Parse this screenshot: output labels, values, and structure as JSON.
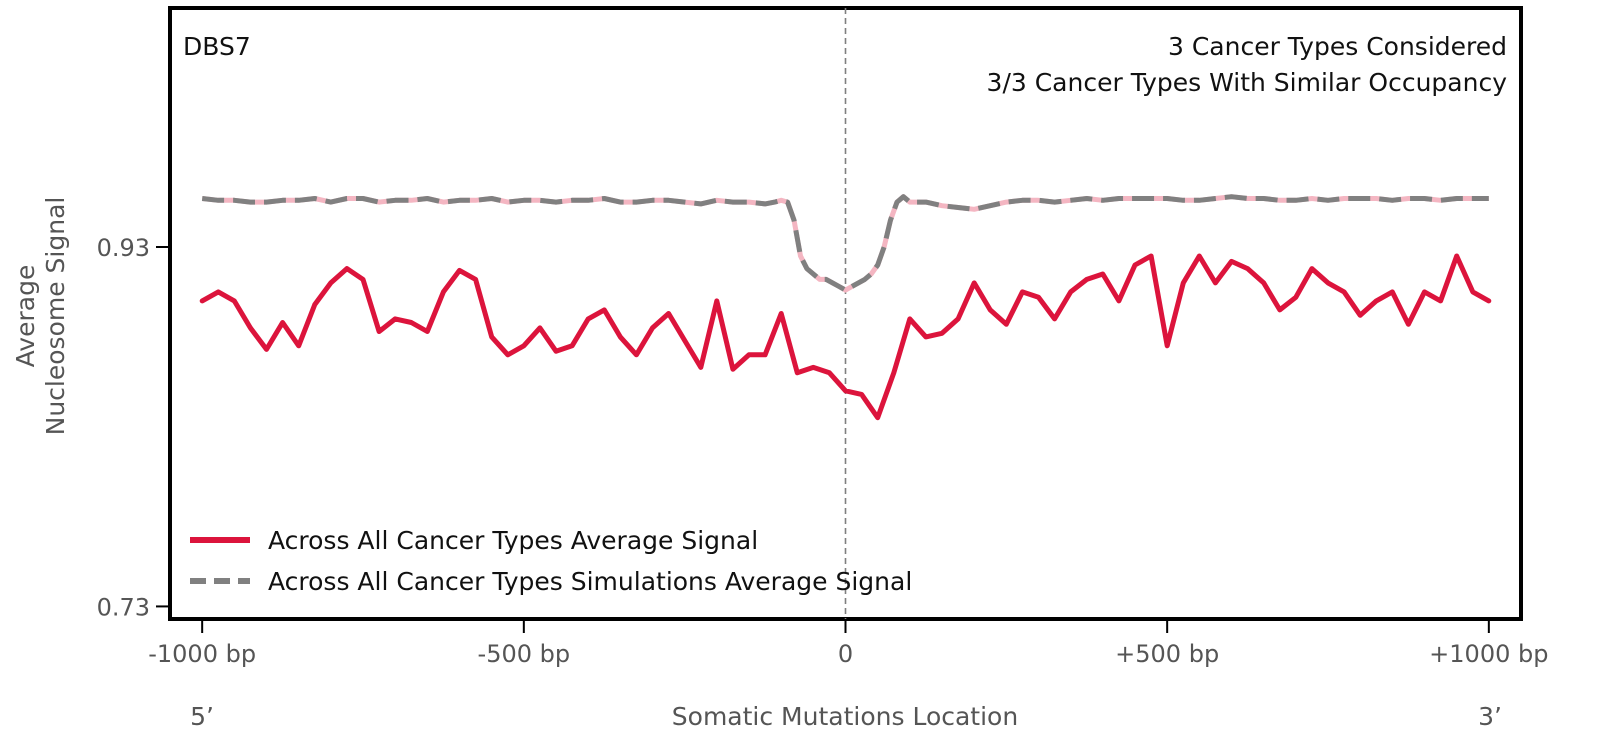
{
  "chart_data": {
    "type": "line",
    "signature": "DBS7",
    "annotation_line1": "3 Cancer Types Considered",
    "annotation_line2": "3/3 Cancer Types With Similar Occupancy",
    "xlabel": "Somatic Mutations Location",
    "ylabel_line1": "Average",
    "ylabel_line2": "Nucleosome Signal",
    "x_end_labels": {
      "left": "5’",
      "right": "3’"
    },
    "xlim": [
      -1050,
      1050
    ],
    "ylim": [
      0.723,
      1.063
    ],
    "x_ticks": [
      {
        "value": -1000,
        "label": "-1000 bp"
      },
      {
        "value": -500,
        "label": "-500 bp"
      },
      {
        "value": 0,
        "label": "0"
      },
      {
        "value": 500,
        "label": "+500 bp"
      },
      {
        "value": 1000,
        "label": "+1000 bp"
      }
    ],
    "y_ticks": [
      {
        "value": 0.73,
        "label": "0.73"
      },
      {
        "value": 0.93,
        "label": "0.93"
      }
    ],
    "vline_x": 0,
    "legend_position": "lower-left",
    "colors": {
      "real": "#dc143c",
      "simulation": "#808080",
      "simulation_highlight": "#f4b6c2",
      "vline": "#7f7f7f"
    },
    "series": [
      {
        "name": "Across All Cancer Types Average Signal",
        "key": "real",
        "x": [
          -1000,
          -975,
          -950,
          -925,
          -900,
          -875,
          -850,
          -825,
          -800,
          -775,
          -750,
          -725,
          -700,
          -675,
          -650,
          -625,
          -600,
          -575,
          -550,
          -525,
          -500,
          -475,
          -450,
          -425,
          -400,
          -375,
          -350,
          -325,
          -300,
          -275,
          -250,
          -225,
          -200,
          -175,
          -150,
          -125,
          -100,
          -75,
          -50,
          -25,
          0,
          25,
          50,
          75,
          100,
          125,
          150,
          175,
          200,
          225,
          250,
          275,
          300,
          325,
          350,
          375,
          400,
          425,
          450,
          475,
          500,
          525,
          550,
          575,
          600,
          625,
          650,
          675,
          700,
          725,
          750,
          775,
          800,
          825,
          850,
          875,
          900,
          925,
          950,
          975,
          1000
        ],
        "values": [
          0.9,
          0.905,
          0.9,
          0.885,
          0.873,
          0.888,
          0.875,
          0.898,
          0.91,
          0.918,
          0.912,
          0.883,
          0.89,
          0.888,
          0.883,
          0.905,
          0.917,
          0.912,
          0.88,
          0.87,
          0.875,
          0.885,
          0.872,
          0.875,
          0.89,
          0.895,
          0.88,
          0.87,
          0.885,
          0.893,
          0.878,
          0.863,
          0.9,
          0.862,
          0.87,
          0.87,
          0.893,
          0.86,
          0.863,
          0.86,
          0.85,
          0.848,
          0.835,
          0.86,
          0.89,
          0.88,
          0.882,
          0.89,
          0.91,
          0.895,
          0.887,
          0.905,
          0.902,
          0.89,
          0.905,
          0.912,
          0.915,
          0.9,
          0.92,
          0.925,
          0.875,
          0.91,
          0.925,
          0.91,
          0.922,
          0.918,
          0.91,
          0.895,
          0.902,
          0.918,
          0.91,
          0.905,
          0.892,
          0.9,
          0.905,
          0.887,
          0.905,
          0.9,
          0.925,
          0.905,
          0.9
        ]
      },
      {
        "name": "Across All Cancer Types Simulations Average Signal",
        "key": "simulation",
        "x": [
          -1000,
          -975,
          -950,
          -925,
          -900,
          -875,
          -850,
          -825,
          -800,
          -775,
          -750,
          -725,
          -700,
          -675,
          -650,
          -625,
          -600,
          -575,
          -550,
          -525,
          -500,
          -475,
          -450,
          -425,
          -400,
          -375,
          -350,
          -325,
          -300,
          -275,
          -250,
          -225,
          -200,
          -175,
          -150,
          -125,
          -110,
          -100,
          -90,
          -80,
          -70,
          -60,
          -50,
          -40,
          -30,
          -20,
          -10,
          0,
          10,
          20,
          30,
          40,
          50,
          60,
          70,
          80,
          90,
          100,
          125,
          150,
          175,
          200,
          225,
          250,
          275,
          300,
          325,
          350,
          375,
          400,
          425,
          450,
          475,
          500,
          525,
          550,
          575,
          600,
          625,
          650,
          675,
          700,
          725,
          750,
          775,
          800,
          825,
          850,
          875,
          900,
          925,
          950,
          975,
          1000
        ],
        "values": [
          0.957,
          0.956,
          0.956,
          0.955,
          0.955,
          0.956,
          0.956,
          0.957,
          0.955,
          0.957,
          0.957,
          0.955,
          0.956,
          0.956,
          0.957,
          0.955,
          0.956,
          0.956,
          0.957,
          0.955,
          0.956,
          0.956,
          0.955,
          0.956,
          0.956,
          0.957,
          0.955,
          0.955,
          0.956,
          0.956,
          0.955,
          0.954,
          0.956,
          0.955,
          0.955,
          0.954,
          0.955,
          0.956,
          0.955,
          0.945,
          0.925,
          0.918,
          0.915,
          0.912,
          0.912,
          0.91,
          0.908,
          0.906,
          0.908,
          0.91,
          0.912,
          0.915,
          0.92,
          0.93,
          0.945,
          0.955,
          0.958,
          0.955,
          0.955,
          0.953,
          0.952,
          0.951,
          0.953,
          0.955,
          0.956,
          0.956,
          0.955,
          0.956,
          0.957,
          0.956,
          0.957,
          0.957,
          0.957,
          0.957,
          0.956,
          0.956,
          0.957,
          0.958,
          0.957,
          0.957,
          0.956,
          0.956,
          0.957,
          0.956,
          0.957,
          0.957,
          0.957,
          0.956,
          0.957,
          0.957,
          0.956,
          0.957,
          0.957,
          0.957
        ]
      }
    ]
  }
}
